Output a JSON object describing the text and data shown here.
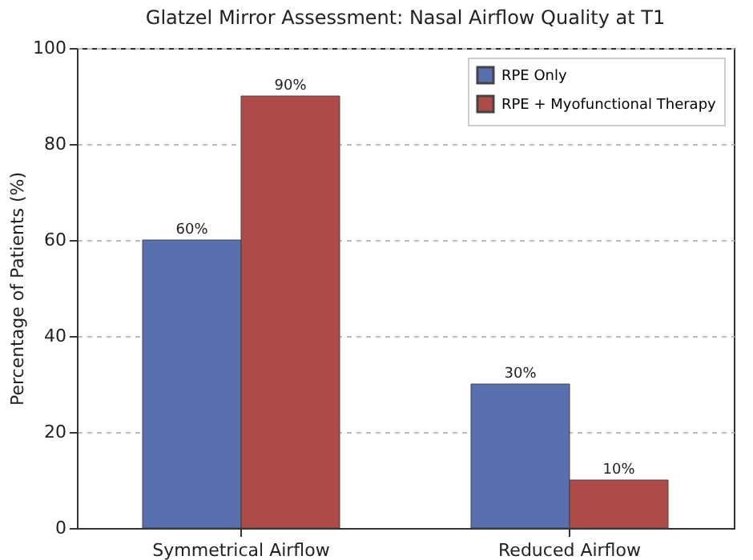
{
  "chart_data": {
    "type": "bar",
    "title": "Glatzel Mirror Assessment: Nasal Airflow Quality at T1",
    "ylabel": "Percentage of Patients (%)",
    "categories": [
      "Symmetrical Airflow",
      "Reduced Airflow"
    ],
    "series": [
      {
        "name": "RPE Only",
        "color": "#5a6fae",
        "values": [
          60,
          30
        ],
        "value_labels": [
          "60%",
          "30%"
        ]
      },
      {
        "name": "RPE + Myofunctional Therapy",
        "color": "#ad4b4b",
        "values": [
          90,
          10
        ],
        "value_labels": [
          "90%",
          "10%"
        ]
      }
    ],
    "ylim": [
      0,
      100
    ],
    "yticks": [
      0,
      20,
      40,
      60,
      80,
      100
    ],
    "grid": "y",
    "legend": "top right"
  }
}
